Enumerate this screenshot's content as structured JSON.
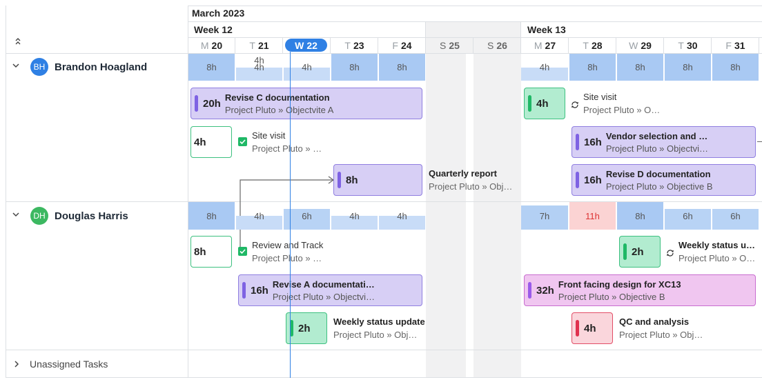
{
  "timeline": {
    "month": "March 2023",
    "weeks": [
      "Week 12",
      "Week 13"
    ],
    "days": [
      {
        "l": "M",
        "n": "20"
      },
      {
        "l": "T",
        "n": "21"
      },
      {
        "l": "W",
        "n": "22"
      },
      {
        "l": "T",
        "n": "23"
      },
      {
        "l": "F",
        "n": "24"
      },
      {
        "l": "S",
        "n": "25"
      },
      {
        "l": "S",
        "n": "26"
      },
      {
        "l": "M",
        "n": "27"
      },
      {
        "l": "T",
        "n": "28"
      },
      {
        "l": "W",
        "n": "29"
      },
      {
        "l": "T",
        "n": "30"
      },
      {
        "l": "F",
        "n": "31"
      }
    ]
  },
  "people": [
    {
      "initials": "BH",
      "name": "Brandon Hoagland",
      "avatar_color": "#2f80e4",
      "capacity": [
        "8h",
        "4h",
        "4h",
        "8h",
        "8h",
        "4h",
        "8h",
        "8h",
        "8h",
        "8h"
      ]
    },
    {
      "initials": "DH",
      "name": "Douglas Harris",
      "avatar_color": "#3cb861",
      "capacity": [
        "8h",
        "4h",
        "6h",
        "4h",
        "4h",
        "7h",
        "11h",
        "8h",
        "6h",
        "6h"
      ]
    }
  ],
  "tasks": {
    "bh_revise_c": {
      "hours": "20h",
      "title": "Revise C documentation",
      "sub": "Project Pluto » Objectvite A"
    },
    "bh_site_visit_1": {
      "hours": "4h",
      "title": "Site visit",
      "sub": "Project Pluto » Objectvite A"
    },
    "bh_site_visit_2": {
      "hours": "4h",
      "title": "Site visit",
      "sub": "Project Pluto » Objectvite B"
    },
    "bh_vendor": {
      "hours": "16h",
      "title": "Vendor selection and contract",
      "sub": "Project Pluto » Objectvite B"
    },
    "bh_quarterly": {
      "hours": "8h",
      "title": "Quarterly report",
      "sub": "Project Pluto » Objective A"
    },
    "bh_revise_d": {
      "hours": "16h",
      "title": "Revise D documentation",
      "sub": "Project Pluto » Objective B"
    },
    "dh_review": {
      "hours": "8h",
      "title": "Review and Track",
      "sub": "Project Pluto » Objectvite A"
    },
    "dh_revise_a": {
      "hours": "16h",
      "title": "Revise A documentation",
      "sub": "Project Pluto » Objectvite A"
    },
    "dh_weekly_1": {
      "hours": "2h",
      "title": "Weekly status update",
      "sub": "Project Pluto » Objective A"
    },
    "dh_weekly_2": {
      "hours": "2h",
      "title": "Weekly status update",
      "sub": "Project Pluto » Objective B"
    },
    "dh_front": {
      "hours": "32h",
      "title": "Front facing design for XC13",
      "sub": "Project Pluto » Objective B"
    },
    "dh_qc": {
      "hours": "4h",
      "title": "QC and analysis",
      "sub": "Project Pluto » Objective B"
    }
  },
  "unassigned": {
    "label": "Unassigned Tasks"
  },
  "colors": {
    "today": "#2f80e4",
    "capacity_full": "#a9c9f3",
    "capacity_partial": "#c8dcf7",
    "overallocated": "#fbd3d3",
    "task_purple": "#d7cff5",
    "task_green": "#b2ecd0",
    "task_pink": "#f0c6f0",
    "task_red": "#fad6dc"
  },
  "icons": {
    "collapse_all": "double-chevron-icon",
    "expand": "chevron-down-icon",
    "collapse": "chevron-right-icon",
    "recurring": "recurring-icon",
    "done": "checkbox-checked-icon"
  }
}
